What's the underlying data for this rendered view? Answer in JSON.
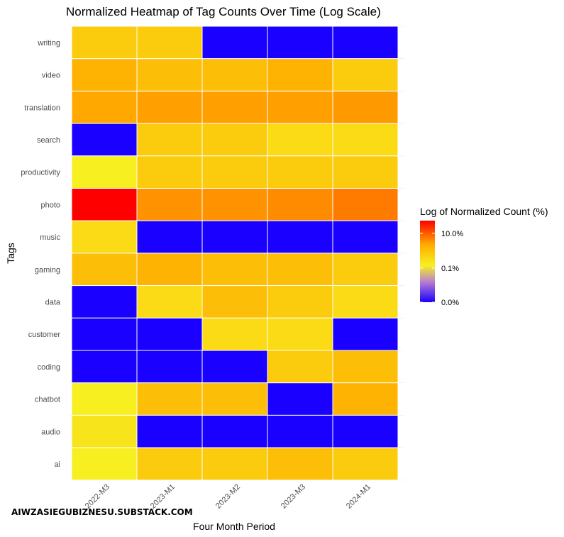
{
  "chart_data": {
    "type": "heatmap",
    "title": "Normalized Heatmap of Tag Counts Over Time (Log Scale)",
    "xlabel": "Four Month Period",
    "ylabel": "Tags",
    "x_categories": [
      "2022-M3",
      "2023-M1",
      "2023-M2",
      "2023-M3",
      "2024-M1"
    ],
    "y_categories": [
      "writing",
      "video",
      "translation",
      "search",
      "productivity",
      "photo",
      "music",
      "gaming",
      "data",
      "customer",
      "coding",
      "chatbot",
      "audio",
      "ai"
    ],
    "values_percent": [
      [
        5.0,
        5.0,
        0.0,
        0.0,
        0.0
      ],
      [
        7.0,
        6.0,
        6.0,
        7.0,
        5.0
      ],
      [
        8.0,
        9.0,
        9.0,
        9.0,
        10.0
      ],
      [
        0.0,
        5.0,
        5.0,
        4.0,
        4.0
      ],
      [
        3.0,
        5.0,
        5.0,
        5.0,
        5.0
      ],
      [
        20.0,
        11.0,
        11.0,
        12.0,
        13.0
      ],
      [
        4.0,
        0.0,
        0.0,
        0.0,
        0.0
      ],
      [
        6.0,
        7.0,
        6.0,
        6.0,
        5.0
      ],
      [
        0.0,
        4.0,
        6.0,
        5.0,
        4.0
      ],
      [
        0.0,
        0.0,
        4.0,
        4.0,
        0.0
      ],
      [
        0.0,
        0.0,
        0.0,
        5.0,
        6.0
      ],
      [
        3.0,
        6.0,
        6.0,
        0.0,
        7.0
      ],
      [
        3.5,
        0.0,
        0.0,
        0.0,
        0.0
      ],
      [
        3.0,
        5.0,
        5.0,
        6.0,
        5.0
      ]
    ],
    "legend": {
      "title": "Log of Normalized Count (%)",
      "position": "right",
      "tick_labels": [
        "10.0%",
        "0.1%",
        "0.0%"
      ]
    },
    "grid": true
  },
  "watermark": "AIWZASIEGUBIZNESU.SUBSTACK.COM"
}
